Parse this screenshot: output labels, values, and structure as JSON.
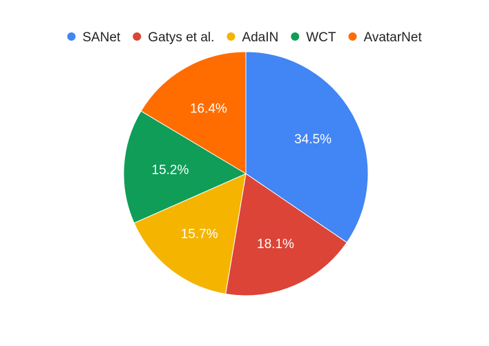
{
  "chart_data": {
    "type": "pie",
    "title": "",
    "legend_position": "top",
    "slices": [
      {
        "name": "SANet",
        "value": 34.5,
        "label": "34.5%",
        "color": "#4285F4"
      },
      {
        "name": "Gatys et al.",
        "value": 18.1,
        "label": "18.1%",
        "color": "#DB4437"
      },
      {
        "name": "AdaIN",
        "value": 15.7,
        "label": "15.7%",
        "color": "#F4B400"
      },
      {
        "name": "WCT",
        "value": 15.2,
        "label": "15.2%",
        "color": "#0F9D58"
      },
      {
        "name": "AvatarNet",
        "value": 16.4,
        "label": "16.4%",
        "color": "#FF6D01"
      }
    ]
  }
}
